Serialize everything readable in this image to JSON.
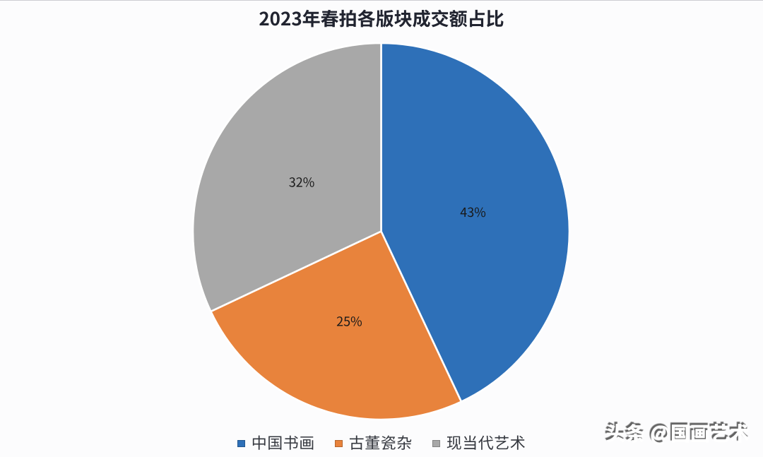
{
  "page": {
    "background": "#fcfcfd",
    "top_edge_line_color": "#a5a5af"
  },
  "chart_data": {
    "type": "pie",
    "title": "2023年春拍各版块成交额占比",
    "categories": [
      "中国书画",
      "古董瓷杂",
      "现当代艺术"
    ],
    "values": [
      43,
      25,
      32
    ],
    "labels": [
      "43%",
      "25%",
      "32%"
    ],
    "colors": [
      "#2e70b8",
      "#e8833c",
      "#a8a8a8"
    ],
    "start_angle_deg": 0,
    "direction": "clockwise",
    "slice_border_color": "#ffffff",
    "label_color": "#191919",
    "title_color": "#212430",
    "legend_position": "bottom",
    "legend_text_color": "#35383f"
  },
  "watermark": {
    "text": "头条 @国画艺术"
  }
}
